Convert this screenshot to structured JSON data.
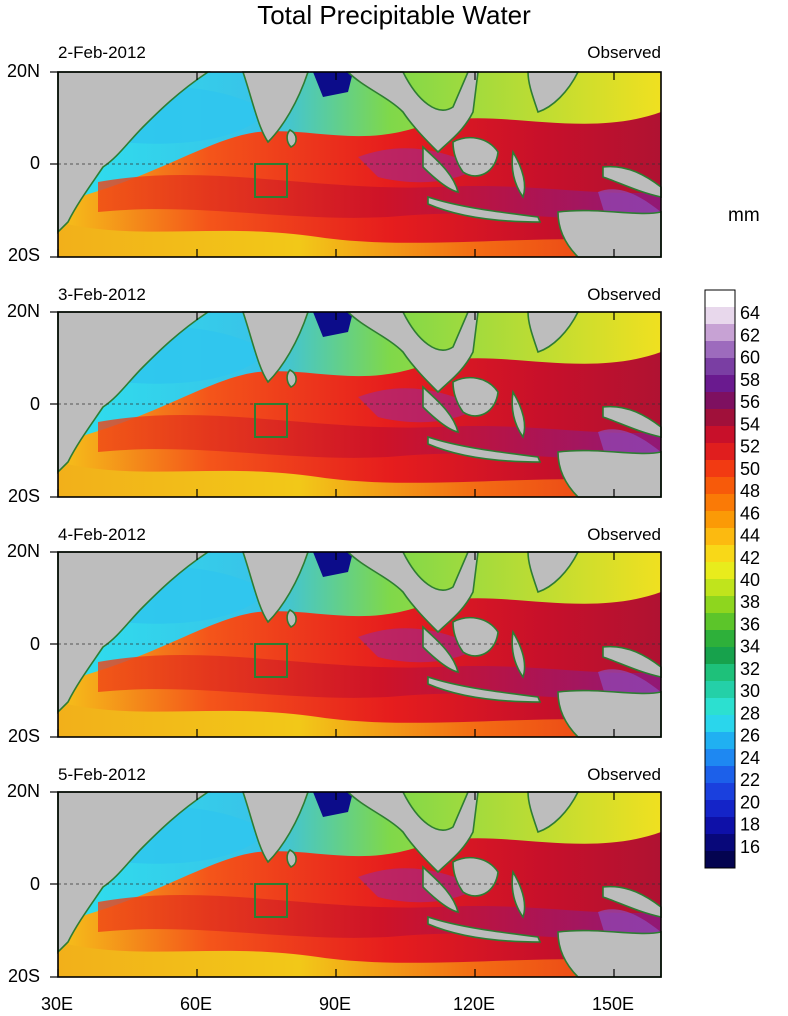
{
  "title": "Total Precipitable Water",
  "units": "mm",
  "panels": [
    {
      "date": "2-Feb-2012",
      "status": "Observed"
    },
    {
      "date": "3-Feb-2012",
      "status": "Observed"
    },
    {
      "date": "4-Feb-2012",
      "status": "Observed"
    },
    {
      "date": "5-Feb-2012",
      "status": "Observed"
    }
  ],
  "lat_labels": [
    "20N",
    "0",
    "20S"
  ],
  "lon_labels": [
    "30E",
    "60E",
    "90E",
    "120E",
    "150E"
  ],
  "colorbar": {
    "labels": [
      "64",
      "62",
      "60",
      "58",
      "56",
      "54",
      "52",
      "50",
      "48",
      "46",
      "44",
      "42",
      "40",
      "38",
      "36",
      "34",
      "32",
      "30",
      "28",
      "26",
      "24",
      "22",
      "20",
      "18",
      "16"
    ],
    "colors_top_to_bottom": [
      "#ffffff",
      "#e8d8ec",
      "#c7a2d4",
      "#9d6bbd",
      "#7a3ea3",
      "#6a1a8f",
      "#7e1060",
      "#a0103a",
      "#c8102a",
      "#e01e1e",
      "#f23a12",
      "#f75a0a",
      "#fa7a06",
      "#fb9a06",
      "#fcba10",
      "#f8d818",
      "#e8ec1c",
      "#c0e41c",
      "#8ed61e",
      "#5cc52a",
      "#2eb03a",
      "#17a24c",
      "#1ec17a",
      "#24d0a8",
      "#2ce0d0",
      "#2ad6ec",
      "#20b0f2",
      "#1e88f2",
      "#1c60ea",
      "#1a40de",
      "#1424c8",
      "#0e10a8",
      "#08087a",
      "#040450"
    ]
  },
  "map": {
    "land_color": "#bdbdbd",
    "coast_color": "#2e7d32",
    "lat_range": [
      "20S",
      "20N"
    ],
    "lon_range": [
      "30E",
      "160E"
    ],
    "highlight_box": "73E-80E, 0-7S"
  }
}
